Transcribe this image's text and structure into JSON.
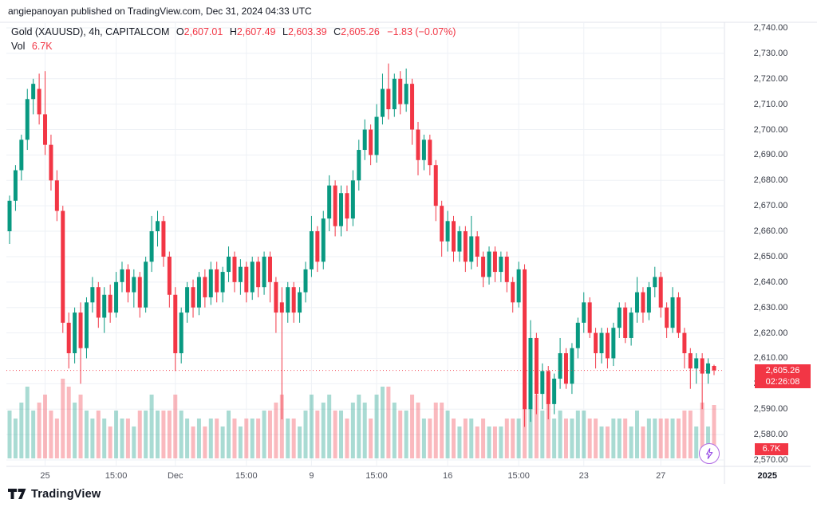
{
  "header": {
    "publish_info": "angiepanoyan published on TradingView.com, Dec 31, 2024 04:33 UTC"
  },
  "legend": {
    "symbol": "Gold (XAUUSD), 4h, CAPITALCOM",
    "o_label": "O",
    "o": "2,607.01",
    "h_label": "H",
    "h": "2,607.49",
    "l_label": "L",
    "l": "2,603.39",
    "c_label": "C",
    "c": "2,605.26",
    "change": "−1.83 (−0.07%)",
    "vol_label": "Vol",
    "vol_value": "6.7K"
  },
  "price_line": {
    "price": 2605.26,
    "label": "2,605.26",
    "countdown": "02:26:08"
  },
  "volume_badge": "6.7K",
  "footer": {
    "brand": "TradingView"
  },
  "colors": {
    "up": "#089981",
    "down": "#f23645",
    "badge": "#f23645",
    "grid": "#eef1f6",
    "axis_border": "#e0e3eb",
    "price_line": "#f23645",
    "bolt": "#8e3de3"
  },
  "chart_data": {
    "type": "candlestick",
    "title": "Gold (XAUUSD), 4h, CAPITALCOM",
    "symbol": "Gold (XAUUSD)",
    "interval": "4h",
    "exchange": "CAPITALCOM",
    "last": {
      "open": 2607.01,
      "high": 2607.49,
      "low": 2603.39,
      "close": 2605.26,
      "change": -1.83,
      "change_pct": -0.07,
      "volume_k": 6.7
    },
    "price_axis": {
      "min": 2570,
      "max": 2740,
      "step": 10,
      "labels": [
        "2,740.00",
        "2,730.00",
        "2,720.00",
        "2,710.00",
        "2,700.00",
        "2,690.00",
        "2,680.00",
        "2,670.00",
        "2,660.00",
        "2,650.00",
        "2,640.00",
        "2,630.00",
        "2,620.00",
        "2,610.00",
        "2,600.00",
        "2,590.00",
        "2,580.00",
        "2,570.00"
      ]
    },
    "time_ticks": [
      {
        "label": "25",
        "i": 6
      },
      {
        "label": "15:00",
        "i": 18
      },
      {
        "label": "Dec",
        "i": 28
      },
      {
        "label": "15:00",
        "i": 40
      },
      {
        "label": "9",
        "i": 51
      },
      {
        "label": "15:00",
        "i": 62
      },
      {
        "label": "16",
        "i": 74
      },
      {
        "label": "15:00",
        "i": 86
      },
      {
        "label": "23",
        "i": 97
      },
      {
        "label": "27",
        "i": 110
      },
      {
        "label": "2025",
        "i": 128,
        "bold": true
      }
    ],
    "volume_unit": "K",
    "candles": [
      [
        2660,
        2674,
        2655,
        2672,
        6
      ],
      [
        2672,
        2686,
        2668,
        2684,
        5
      ],
      [
        2684,
        2698,
        2680,
        2696,
        7
      ],
      [
        2696,
        2716,
        2692,
        2712,
        9
      ],
      [
        2712,
        2720,
        2706,
        2718,
        6
      ],
      [
        2716,
        2722,
        2702,
        2706,
        7
      ],
      [
        2706,
        2723,
        2690,
        2694,
        8
      ],
      [
        2694,
        2698,
        2676,
        2680,
        6
      ],
      [
        2680,
        2684,
        2664,
        2668,
        5
      ],
      [
        2668,
        2670,
        2620,
        2624,
        10
      ],
      [
        2624,
        2628,
        2606,
        2612,
        9
      ],
      [
        2612,
        2630,
        2608,
        2628,
        7
      ],
      [
        2628,
        2632,
        2600,
        2614,
        8
      ],
      [
        2614,
        2634,
        2610,
        2632,
        6
      ],
      [
        2632,
        2642,
        2628,
        2638,
        5
      ],
      [
        2638,
        2640,
        2622,
        2626,
        6
      ],
      [
        2626,
        2638,
        2620,
        2635,
        5
      ],
      [
        2635,
        2639,
        2624,
        2628,
        4
      ],
      [
        2628,
        2644,
        2626,
        2640,
        6
      ],
      [
        2640,
        2648,
        2636,
        2645,
        5
      ],
      [
        2645,
        2647,
        2632,
        2636,
        5
      ],
      [
        2636,
        2645,
        2630,
        2642,
        4
      ],
      [
        2642,
        2644,
        2626,
        2630,
        6
      ],
      [
        2630,
        2650,
        2628,
        2648,
        6
      ],
      [
        2648,
        2666,
        2644,
        2660,
        8
      ],
      [
        2660,
        2668,
        2654,
        2664,
        6
      ],
      [
        2664,
        2666,
        2646,
        2650,
        6
      ],
      [
        2650,
        2652,
        2630,
        2635,
        6
      ],
      [
        2635,
        2638,
        2605,
        2612,
        8
      ],
      [
        2612,
        2630,
        2608,
        2628,
        6
      ],
      [
        2628,
        2640,
        2624,
        2638,
        5
      ],
      [
        2638,
        2641,
        2626,
        2630,
        4
      ],
      [
        2630,
        2644,
        2627,
        2642,
        5
      ],
      [
        2642,
        2645,
        2630,
        2634,
        4
      ],
      [
        2634,
        2648,
        2631,
        2645,
        5
      ],
      [
        2645,
        2648,
        2632,
        2636,
        5
      ],
      [
        2636,
        2646,
        2632,
        2644,
        4
      ],
      [
        2644,
        2654,
        2640,
        2650,
        6
      ],
      [
        2650,
        2652,
        2636,
        2640,
        5
      ],
      [
        2640,
        2649,
        2635,
        2646,
        4
      ],
      [
        2646,
        2648,
        2632,
        2636,
        5
      ],
      [
        2636,
        2650,
        2633,
        2648,
        5
      ],
      [
        2648,
        2650,
        2634,
        2638,
        5
      ],
      [
        2638,
        2652,
        2635,
        2650,
        6
      ],
      [
        2650,
        2652,
        2632,
        2640,
        6
      ],
      [
        2640,
        2642,
        2620,
        2628,
        7
      ],
      [
        2632,
        2638,
        2586,
        2628,
        8
      ],
      [
        2628,
        2640,
        2624,
        2638,
        5
      ],
      [
        2638,
        2640,
        2624,
        2628,
        5
      ],
      [
        2628,
        2638,
        2624,
        2636,
        4
      ],
      [
        2636,
        2648,
        2632,
        2645,
        6
      ],
      [
        2645,
        2666,
        2642,
        2660,
        8
      ],
      [
        2660,
        2662,
        2644,
        2648,
        6
      ],
      [
        2648,
        2668,
        2645,
        2665,
        7
      ],
      [
        2665,
        2682,
        2660,
        2678,
        8
      ],
      [
        2678,
        2680,
        2658,
        2662,
        6
      ],
      [
        2662,
        2678,
        2658,
        2675,
        6
      ],
      [
        2675,
        2678,
        2660,
        2665,
        5
      ],
      [
        2665,
        2684,
        2662,
        2680,
        7
      ],
      [
        2680,
        2696,
        2676,
        2692,
        8
      ],
      [
        2692,
        2704,
        2688,
        2700,
        7
      ],
      [
        2700,
        2702,
        2686,
        2690,
        5
      ],
      [
        2690,
        2710,
        2687,
        2705,
        8
      ],
      [
        2705,
        2722,
        2702,
        2716,
        9
      ],
      [
        2716,
        2726,
        2704,
        2708,
        9
      ],
      [
        2708,
        2722,
        2705,
        2720,
        7
      ],
      [
        2720,
        2723,
        2706,
        2710,
        6
      ],
      [
        2710,
        2724,
        2707,
        2718,
        6
      ],
      [
        2718,
        2720,
        2694,
        2700,
        8
      ],
      [
        2700,
        2703,
        2682,
        2688,
        7
      ],
      [
        2688,
        2698,
        2684,
        2696,
        5
      ],
      [
        2696,
        2698,
        2682,
        2686,
        5
      ],
      [
        2686,
        2688,
        2664,
        2670,
        7
      ],
      [
        2670,
        2672,
        2650,
        2656,
        7
      ],
      [
        2656,
        2668,
        2652,
        2664,
        6
      ],
      [
        2664,
        2666,
        2648,
        2652,
        5
      ],
      [
        2652,
        2662,
        2648,
        2660,
        4
      ],
      [
        2660,
        2662,
        2644,
        2648,
        5
      ],
      [
        2648,
        2666,
        2645,
        2658,
        5
      ],
      [
        2658,
        2660,
        2646,
        2650,
        4
      ],
      [
        2650,
        2652,
        2638,
        2642,
        5
      ],
      [
        2642,
        2654,
        2639,
        2652,
        4
      ],
      [
        2652,
        2654,
        2640,
        2644,
        4
      ],
      [
        2644,
        2652,
        2640,
        2650,
        4
      ],
      [
        2650,
        2652,
        2636,
        2640,
        5
      ],
      [
        2640,
        2642,
        2628,
        2632,
        5
      ],
      [
        2632,
        2648,
        2630,
        2645,
        5
      ],
      [
        2645,
        2647,
        2583,
        2590,
        12
      ],
      [
        2590,
        2625,
        2585,
        2618,
        10
      ],
      [
        2618,
        2620,
        2588,
        2596,
        8
      ],
      [
        2596,
        2608,
        2590,
        2605,
        6
      ],
      [
        2605,
        2607,
        2586,
        2592,
        7
      ],
      [
        2592,
        2604,
        2588,
        2602,
        5
      ],
      [
        2602,
        2618,
        2598,
        2612,
        6
      ],
      [
        2612,
        2614,
        2598,
        2600,
        5
      ],
      [
        2600,
        2616,
        2596,
        2614,
        5
      ],
      [
        2614,
        2626,
        2610,
        2624,
        6
      ],
      [
        2624,
        2636,
        2620,
        2632,
        6
      ],
      [
        2632,
        2634,
        2618,
        2620,
        5
      ],
      [
        2620,
        2622,
        2606,
        2612,
        5
      ],
      [
        2612,
        2622,
        2608,
        2620,
        4
      ],
      [
        2620,
        2622,
        2606,
        2610,
        4
      ],
      [
        2610,
        2624,
        2607,
        2622,
        5
      ],
      [
        2622,
        2632,
        2618,
        2630,
        5
      ],
      [
        2630,
        2632,
        2616,
        2618,
        5
      ],
      [
        2618,
        2630,
        2615,
        2628,
        4
      ],
      [
        2628,
        2642,
        2624,
        2636,
        6
      ],
      [
        2636,
        2638,
        2624,
        2628,
        4
      ],
      [
        2628,
        2640,
        2625,
        2638,
        5
      ],
      [
        2638,
        2646,
        2634,
        2642,
        5
      ],
      [
        2642,
        2644,
        2626,
        2630,
        5
      ],
      [
        2630,
        2632,
        2618,
        2622,
        5
      ],
      [
        2622,
        2638,
        2620,
        2634,
        5
      ],
      [
        2634,
        2636,
        2618,
        2620,
        5
      ],
      [
        2620,
        2622,
        2606,
        2612,
        6
      ],
      [
        2612,
        2614,
        2598,
        2606,
        6
      ],
      [
        2606,
        2612,
        2600,
        2610,
        4
      ],
      [
        2610,
        2612,
        2590,
        2604,
        7
      ],
      [
        2604,
        2610,
        2600,
        2608,
        4
      ],
      [
        2607.01,
        2607.49,
        2603.39,
        2605.26,
        6.7
      ]
    ]
  }
}
